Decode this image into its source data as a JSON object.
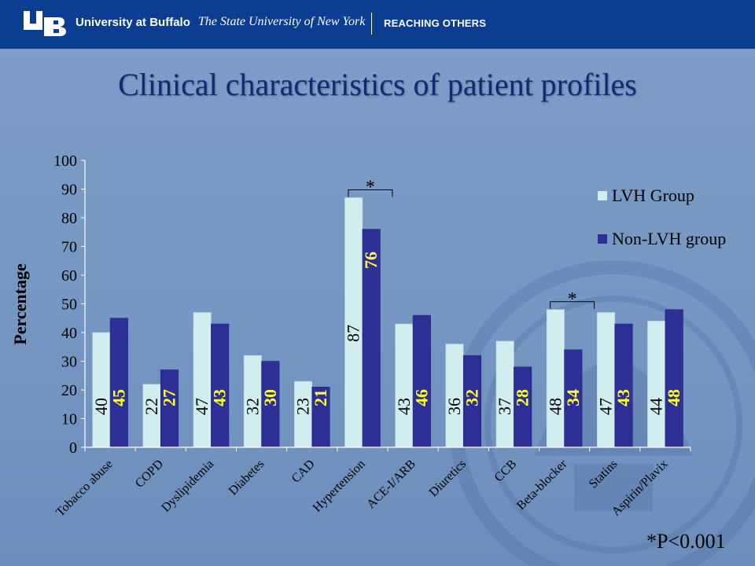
{
  "header": {
    "university": "University at Buffalo",
    "subtitle": "The State University of New York",
    "tagline": "REACHING OTHERS"
  },
  "slide": {
    "title": "Clinical characteristics of patient profiles",
    "footnote": "*P<0.001"
  },
  "chart_data": {
    "type": "bar",
    "title": "",
    "xlabel": "",
    "ylabel": "Percentage",
    "ylim": [
      0,
      100
    ],
    "yticks": [
      "0",
      "10",
      "20",
      "30",
      "40",
      "50",
      "60",
      "70",
      "80",
      "90",
      "100"
    ],
    "grid": false,
    "legend_position": "top-right",
    "categories": [
      "Tobacco abuse",
      "COPD",
      "Dyslipidemia",
      "Diabetes",
      "CAD",
      "Hypertension",
      "ACE-I/ARB",
      "Diuretics",
      "CCB",
      "Beta-blocker",
      "Statins",
      "Aspirin/Plavix"
    ],
    "series": [
      {
        "name": "LVH Group",
        "color": "#d2edf0",
        "values": [
          40,
          22,
          47,
          32,
          23,
          87,
          43,
          36,
          37,
          48,
          47,
          44
        ],
        "labels": [
          "40",
          "22",
          "47",
          "32",
          "23",
          "87",
          "43",
          "36",
          "37",
          "48",
          "47",
          "44"
        ]
      },
      {
        "name": "Non-LVH group",
        "color": "#2e2f96",
        "values": [
          45,
          27,
          43,
          30,
          21,
          76,
          46,
          32,
          28,
          34,
          43,
          48
        ],
        "labels": [
          "45",
          "27",
          "43",
          "30",
          "21",
          "76",
          "46",
          "32",
          "28",
          "34",
          "43",
          "48"
        ]
      }
    ],
    "significance": [
      {
        "category": "Hypertension",
        "marker": "*"
      },
      {
        "category": "Beta-blocker",
        "marker": "*"
      }
    ]
  }
}
